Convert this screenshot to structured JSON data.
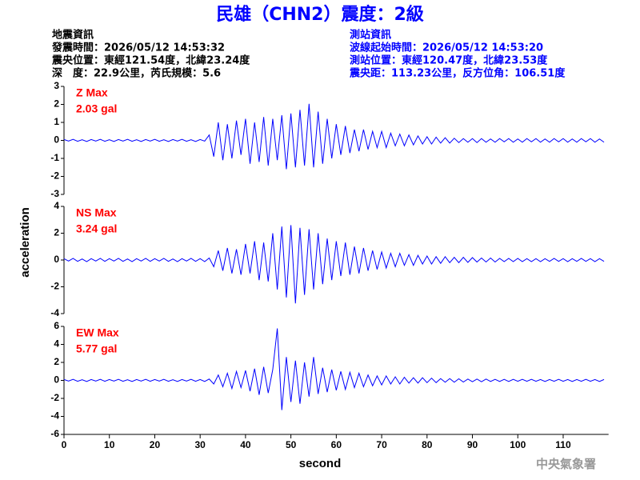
{
  "header": {
    "title": "民雄（CHN2）震度：2級",
    "left": [
      "地震資訊",
      "發震時間：2026/05/12 14:53:32",
      "震央位置：東經121.54度，北緯23.24度",
      "深　度：22.9公里，芮氏規模：5.6"
    ],
    "right": [
      "測站資訊",
      "波線起始時間：2026/05/12 14:53:20",
      "測站位置：東經120.47度，北緯23.53度",
      "震央距：113.23公里，反方位角：106.51度"
    ]
  },
  "footer": "中央氣象署",
  "chart_data": [
    {
      "type": "line",
      "annotation": [
        "Z Max",
        "2.03 gal"
      ],
      "color": "#0000ff",
      "xlim": [
        0,
        120
      ],
      "ylim": [
        -3,
        3
      ],
      "yticks": [
        -3,
        -2,
        -1,
        0,
        1,
        2,
        3
      ],
      "x": [
        0,
        1,
        2,
        3,
        4,
        5,
        6,
        7,
        8,
        9,
        10,
        11,
        12,
        13,
        14,
        15,
        16,
        17,
        18,
        19,
        20,
        21,
        22,
        23,
        24,
        25,
        26,
        27,
        28,
        29,
        30,
        31,
        32,
        33,
        34,
        35,
        36,
        37,
        38,
        39,
        40,
        41,
        42,
        43,
        44,
        45,
        46,
        47,
        48,
        49,
        50,
        51,
        52,
        53,
        54,
        55,
        56,
        57,
        58,
        59,
        60,
        61,
        62,
        63,
        64,
        65,
        66,
        67,
        68,
        69,
        70,
        71,
        72,
        73,
        74,
        75,
        76,
        77,
        78,
        79,
        80,
        81,
        82,
        83,
        84,
        85,
        86,
        87,
        88,
        89,
        90,
        91,
        92,
        93,
        94,
        95,
        96,
        97,
        98,
        99,
        100,
        101,
        102,
        103,
        104,
        105,
        106,
        107,
        108,
        109,
        110,
        111,
        112,
        113,
        114,
        115,
        116,
        117,
        118,
        119
      ],
      "values": [
        0.05,
        -0.04,
        0.06,
        -0.05,
        0.04,
        -0.06,
        0.05,
        -0.04,
        0.06,
        -0.05,
        0.04,
        -0.06,
        0.05,
        -0.04,
        0.06,
        -0.05,
        0.04,
        -0.06,
        0.05,
        -0.04,
        0.06,
        -0.05,
        0.04,
        -0.06,
        0.05,
        -0.04,
        0.06,
        -0.05,
        0.04,
        -0.06,
        0.05,
        -0.04,
        0.3,
        -0.9,
        1.0,
        -1.1,
        0.9,
        -1.0,
        1.1,
        -0.8,
        1.2,
        -1.3,
        1.0,
        -1.2,
        1.3,
        -1.4,
        1.2,
        -1.1,
        1.4,
        -1.6,
        1.5,
        -1.5,
        1.7,
        -1.4,
        2.03,
        -1.5,
        1.6,
        -1.3,
        1.2,
        -1.0,
        0.9,
        -0.8,
        0.8,
        -0.7,
        0.6,
        -0.6,
        0.6,
        -0.5,
        0.5,
        -0.4,
        0.5,
        -0.4,
        0.4,
        -0.3,
        0.35,
        -0.3,
        0.3,
        -0.25,
        0.25,
        -0.2,
        0.2,
        -0.2,
        0.18,
        -0.15,
        0.15,
        -0.15,
        0.12,
        -0.12,
        0.1,
        -0.1,
        0.1,
        -0.12,
        0.1,
        -0.1,
        0.08,
        -0.1,
        0.1,
        -0.08,
        0.1,
        -0.1,
        0.08,
        -0.1,
        0.1,
        -0.08,
        0.1,
        -0.1,
        0.08,
        -0.1,
        0.1,
        -0.08,
        0.1,
        -0.1,
        0.08,
        -0.1,
        0.1,
        -0.08,
        0.1,
        -0.1,
        0.08,
        -0.1
      ]
    },
    {
      "type": "line",
      "annotation": [
        "NS Max",
        "3.24 gal"
      ],
      "ylabel": "acceleration",
      "color": "#0000ff",
      "xlim": [
        0,
        120
      ],
      "ylim": [
        -4,
        4
      ],
      "yticks": [
        -4,
        -2,
        0,
        2,
        4
      ],
      "x": [
        0,
        1,
        2,
        3,
        4,
        5,
        6,
        7,
        8,
        9,
        10,
        11,
        12,
        13,
        14,
        15,
        16,
        17,
        18,
        19,
        20,
        21,
        22,
        23,
        24,
        25,
        26,
        27,
        28,
        29,
        30,
        31,
        32,
        33,
        34,
        35,
        36,
        37,
        38,
        39,
        40,
        41,
        42,
        43,
        44,
        45,
        46,
        47,
        48,
        49,
        50,
        51,
        52,
        53,
        54,
        55,
        56,
        57,
        58,
        59,
        60,
        61,
        62,
        63,
        64,
        65,
        66,
        67,
        68,
        69,
        70,
        71,
        72,
        73,
        74,
        75,
        76,
        77,
        78,
        79,
        80,
        81,
        82,
        83,
        84,
        85,
        86,
        87,
        88,
        89,
        90,
        91,
        92,
        93,
        94,
        95,
        96,
        97,
        98,
        99,
        100,
        101,
        102,
        103,
        104,
        105,
        106,
        107,
        108,
        109,
        110,
        111,
        112,
        113,
        114,
        115,
        116,
        117,
        118,
        119
      ],
      "values": [
        0.1,
        -0.08,
        0.12,
        -0.1,
        0.08,
        -0.12,
        0.1,
        -0.08,
        0.12,
        -0.1,
        0.1,
        -0.08,
        0.12,
        -0.1,
        0.08,
        -0.12,
        0.1,
        -0.08,
        0.12,
        -0.1,
        0.1,
        -0.08,
        0.12,
        -0.1,
        0.08,
        -0.12,
        0.1,
        -0.08,
        0.12,
        -0.1,
        0.1,
        -0.12,
        0.15,
        -0.5,
        0.7,
        -0.8,
        0.9,
        -1.0,
        0.8,
        -1.1,
        1.2,
        -1.0,
        1.4,
        -1.5,
        1.3,
        -1.6,
        2.0,
        -2.2,
        2.5,
        -2.8,
        2.6,
        -3.24,
        2.4,
        -2.6,
        2.3,
        -2.2,
        2.0,
        -1.8,
        1.6,
        -1.5,
        1.4,
        -1.2,
        1.3,
        -1.1,
        1.0,
        -1.0,
        0.9,
        -0.8,
        0.7,
        -0.7,
        0.6,
        -0.6,
        0.5,
        -0.5,
        0.5,
        -0.4,
        0.4,
        -0.4,
        0.35,
        -0.3,
        0.3,
        -0.3,
        0.25,
        -0.25,
        0.25,
        -0.2,
        0.2,
        -0.2,
        0.2,
        -0.18,
        0.18,
        -0.15,
        0.15,
        -0.15,
        0.15,
        -0.15,
        0.12,
        -0.12,
        0.12,
        -0.12,
        0.12,
        -0.12,
        0.1,
        -0.12,
        0.1,
        -0.12,
        0.1,
        -0.1,
        0.12,
        -0.1,
        0.1,
        -0.12,
        0.1,
        -0.1,
        0.12,
        -0.1,
        0.1,
        -0.12,
        0.1,
        -0.1
      ]
    },
    {
      "type": "line",
      "annotation": [
        "EW Max",
        "5.77 gal"
      ],
      "xlabel": "second",
      "color": "#0000ff",
      "xlim": [
        0,
        120
      ],
      "xticks": [
        0,
        10,
        20,
        30,
        40,
        50,
        60,
        70,
        80,
        90,
        100,
        110
      ],
      "ylim": [
        -6,
        6
      ],
      "yticks": [
        -6,
        -4,
        -2,
        0,
        2,
        4,
        6
      ],
      "x": [
        0,
        1,
        2,
        3,
        4,
        5,
        6,
        7,
        8,
        9,
        10,
        11,
        12,
        13,
        14,
        15,
        16,
        17,
        18,
        19,
        20,
        21,
        22,
        23,
        24,
        25,
        26,
        27,
        28,
        29,
        30,
        31,
        32,
        33,
        34,
        35,
        36,
        37,
        38,
        39,
        40,
        41,
        42,
        43,
        44,
        45,
        46,
        47,
        48,
        49,
        50,
        51,
        52,
        53,
        54,
        55,
        56,
        57,
        58,
        59,
        60,
        61,
        62,
        63,
        64,
        65,
        66,
        67,
        68,
        69,
        70,
        71,
        72,
        73,
        74,
        75,
        76,
        77,
        78,
        79,
        80,
        81,
        82,
        83,
        84,
        85,
        86,
        87,
        88,
        89,
        90,
        91,
        92,
        93,
        94,
        95,
        96,
        97,
        98,
        99,
        100,
        101,
        102,
        103,
        104,
        105,
        106,
        107,
        108,
        109,
        110,
        111,
        112,
        113,
        114,
        115,
        116,
        117,
        118,
        119
      ],
      "values": [
        0.1,
        -0.08,
        0.12,
        -0.1,
        0.08,
        -0.12,
        0.1,
        -0.08,
        0.12,
        -0.1,
        0.1,
        -0.08,
        0.12,
        -0.1,
        0.08,
        -0.12,
        0.1,
        -0.08,
        0.12,
        -0.1,
        0.1,
        -0.08,
        0.12,
        -0.1,
        0.08,
        -0.12,
        0.1,
        -0.08,
        0.12,
        -0.1,
        0.1,
        -0.12,
        0.15,
        -0.4,
        0.6,
        -0.7,
        0.8,
        -0.9,
        1.0,
        -0.8,
        1.1,
        -1.2,
        1.3,
        -1.6,
        1.5,
        -1.4,
        1.2,
        5.77,
        -3.3,
        2.6,
        -2.4,
        2.2,
        -2.6,
        2.0,
        -1.8,
        2.6,
        -1.5,
        1.4,
        -1.3,
        1.2,
        -1.1,
        1.0,
        -1.0,
        0.9,
        -0.8,
        0.8,
        -0.7,
        0.6,
        -0.6,
        0.5,
        -0.5,
        0.5,
        -0.4,
        0.4,
        -0.4,
        0.35,
        -0.3,
        0.3,
        -0.3,
        0.3,
        -0.25,
        0.25,
        -0.25,
        0.2,
        -0.2,
        0.2,
        -0.2,
        0.18,
        -0.18,
        0.15,
        -0.15,
        0.15,
        -0.15,
        0.15,
        -0.12,
        0.12,
        -0.12,
        0.12,
        -0.12,
        0.12,
        -0.1,
        0.12,
        -0.1,
        0.12,
        -0.1,
        0.1,
        -0.12,
        0.1,
        -0.1,
        0.12,
        -0.1,
        0.1,
        -0.12,
        0.1,
        -0.1,
        0.12,
        -0.1,
        0.1,
        -0.12,
        0.1
      ]
    }
  ]
}
